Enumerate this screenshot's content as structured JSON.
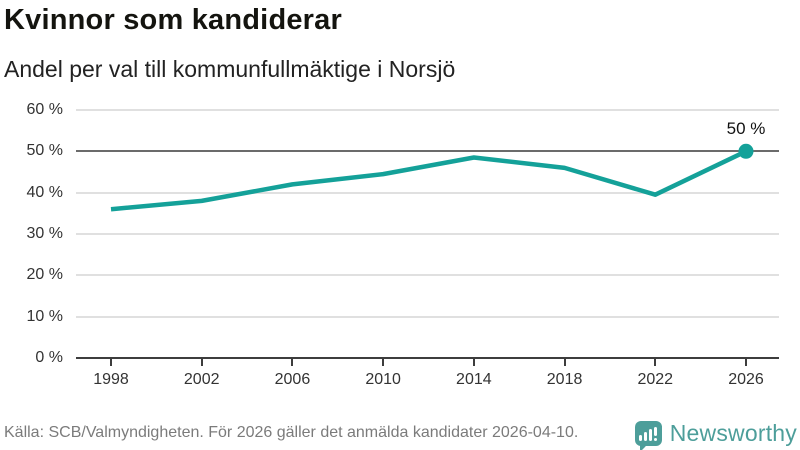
{
  "header": {
    "title": "Kvinnor som kandiderar",
    "subtitle": "Andel per val till kommunfullmäktige i Norsjö"
  },
  "chart_data": {
    "type": "line",
    "title": "Kvinnor som kandiderar",
    "subtitle": "Andel per val till kommunfullmäktige i Norsjö",
    "categories": [
      "1998",
      "2002",
      "2006",
      "2010",
      "2014",
      "2018",
      "2022",
      "2026"
    ],
    "values": [
      36,
      38,
      42,
      44.5,
      48.5,
      46,
      39.5,
      50
    ],
    "xlabel": "",
    "ylabel": "",
    "ylim": [
      0,
      60
    ],
    "ytick_step": 10,
    "ytick_labels": [
      "0 %",
      "10 %",
      "20 %",
      "30 %",
      "40 %",
      "50 %",
      "60 %"
    ],
    "grid": true,
    "legend_position": "none",
    "reference_value": 50,
    "end_point_label": "50 %",
    "line_color": "#14a199",
    "marker_on_last_point": true
  },
  "footer": {
    "source": "Källa: SCB/Valmyndigheten. För 2026 gäller det anmälda kandidater 2026-04-10.",
    "brand_name": "Newsworthy"
  },
  "colors": {
    "accent": "#14a199",
    "brand": "#4d9e9a",
    "grid": "#e0e0e0",
    "reference_line": "#6b6b6b",
    "axis": "#3d3d3d",
    "text": "#1a1a1a",
    "muted_text": "#7b7b7b"
  }
}
